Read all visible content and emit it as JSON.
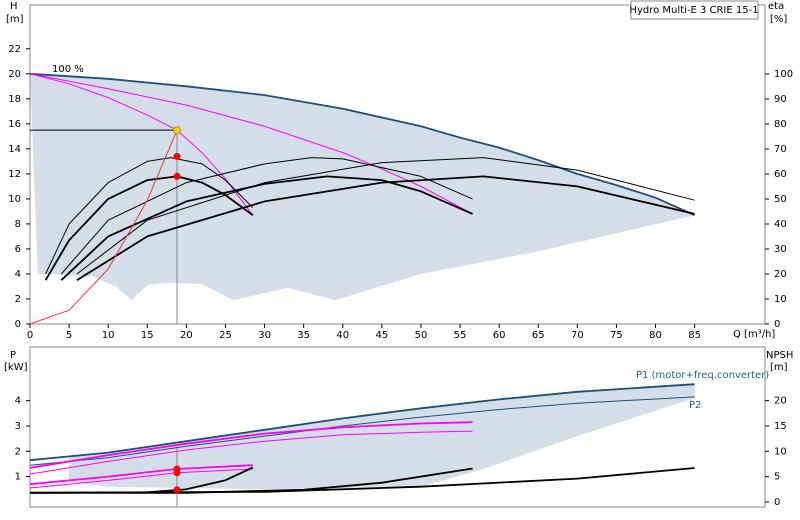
{
  "chart_data": [
    {
      "type": "line",
      "box_title": "Hydro Multi-E 3 CRIE 15-1",
      "y_label": "H",
      "y_unit": "[m]",
      "y2_label": "eta",
      "y2_unit": "[%]",
      "x_label": "Q [m³/h]",
      "annotation": "100 %",
      "xlim": [
        0,
        94
      ],
      "xticks": [
        0,
        5,
        10,
        15,
        20,
        25,
        30,
        35,
        40,
        45,
        50,
        55,
        60,
        65,
        70,
        75,
        80,
        85
      ],
      "ylim": [
        0,
        25.5
      ],
      "yticks": [
        0,
        2,
        4,
        6,
        8,
        10,
        12,
        14,
        16,
        18,
        20,
        22
      ],
      "y2lim": [
        0,
        127.6
      ],
      "y2ticks": [
        0,
        10,
        20,
        30,
        40,
        50,
        60,
        70,
        80,
        90,
        100
      ],
      "areas": [
        {
          "color": "#d3dee8",
          "x": [
            0,
            10,
            20,
            30,
            40,
            50,
            55,
            60,
            65,
            70,
            75,
            80,
            85,
            65,
            50,
            39,
            33,
            26,
            22,
            17,
            15,
            13,
            11,
            8,
            2,
            1,
            0.5
          ],
          "values": [
            20,
            19.6,
            19,
            18.3,
            17.2,
            15.8,
            14.9,
            14.1,
            13.1,
            12.0,
            11.1,
            10.1,
            8.7,
            5.8,
            4.0,
            1.9,
            2.9,
            1.9,
            3.2,
            3.3,
            3.1,
            1.9,
            3.0,
            3.8,
            4.0,
            4.0,
            12
          ]
        }
      ],
      "series": [
        {
          "color": "#1f4e79",
          "style": "thick",
          "x": [
            0,
            10,
            20,
            30,
            40,
            50,
            55,
            60,
            65,
            70,
            75,
            80,
            85
          ],
          "values": [
            20,
            19.6,
            19,
            18.3,
            17.2,
            15.8,
            14.9,
            14.1,
            13.1,
            12.0,
            11.1,
            10.1,
            8.7
          ]
        },
        {
          "color": "#ff00ff",
          "style": "thin",
          "x": [
            0,
            10,
            20,
            30,
            40,
            45,
            50,
            56.6
          ],
          "values": [
            20,
            18.8,
            17.5,
            15.8,
            13.7,
            12.4,
            11.0,
            8.8
          ]
        },
        {
          "color": "#ff00ff",
          "style": "thin",
          "x": [
            0,
            5,
            10,
            15,
            18.8,
            22,
            25,
            28.5
          ],
          "values": [
            20,
            19.2,
            18.1,
            16.7,
            15.5,
            13.7,
            11.6,
            8.7
          ]
        },
        {
          "color": "#000000",
          "style": "thin",
          "x": [
            2,
            5,
            10,
            15,
            18,
            22,
            25,
            28.5
          ],
          "values": [
            4,
            8,
            11.3,
            13.0,
            13.3,
            12.8,
            11.5,
            9.3
          ]
        },
        {
          "color": "#000000",
          "style": "thick",
          "x": [
            2,
            5,
            10,
            15,
            18.8,
            22,
            25,
            28.5
          ],
          "values": [
            3.5,
            6.7,
            10.0,
            11.5,
            11.8,
            11.3,
            10.3,
            8.7
          ]
        },
        {
          "color": "#000000",
          "style": "thin",
          "x": [
            4,
            10,
            20,
            30,
            36,
            40,
            50,
            56.6
          ],
          "values": [
            4,
            8.3,
            11.3,
            12.8,
            13.3,
            13.2,
            11.8,
            10.0
          ]
        },
        {
          "color": "#000000",
          "style": "thick",
          "x": [
            4,
            10,
            20,
            30,
            38,
            45,
            50,
            56.6
          ],
          "values": [
            3.5,
            7.0,
            9.8,
            11.2,
            11.8,
            11.5,
            10.6,
            8.8
          ]
        },
        {
          "color": "#000000",
          "style": "thin",
          "x": [
            6,
            15,
            30,
            45,
            58,
            70,
            85
          ],
          "values": [
            4,
            8.3,
            11.3,
            12.9,
            13.3,
            12.3,
            9.9
          ]
        },
        {
          "color": "#000000",
          "style": "thick",
          "x": [
            6,
            15,
            30,
            45,
            58,
            70,
            85
          ],
          "values": [
            3.5,
            7.0,
            9.8,
            11.3,
            11.8,
            11.0,
            8.8
          ]
        },
        {
          "color": "#ff3333",
          "style": "thin",
          "x": [
            0,
            5,
            10,
            15,
            18.8
          ],
          "values": [
            0,
            1.1,
            4.4,
            9.9,
            15.5
          ]
        }
      ],
      "duty": {
        "x": 18.8,
        "y": 15.5
      },
      "points": [
        {
          "color": "#ffd700",
          "x": 18.8,
          "value": 15.5
        },
        {
          "color": "#ff0000",
          "x": 18.8,
          "value": 13.4
        },
        {
          "color": "#ff0000",
          "x": 18.8,
          "value": 11.8
        }
      ]
    },
    {
      "type": "line",
      "y_label": "P",
      "y_unit": "[kW]",
      "y2_label": "NPSH",
      "y2_unit": "[m]",
      "annotations": [
        "P1 (motor+freq.converter)",
        "P2"
      ],
      "xlim": [
        0,
        94
      ],
      "ylim": [
        -0.2,
        6.12
      ],
      "yticks": [
        1,
        2,
        3,
        4
      ],
      "y2lim": [
        -1,
        30.6
      ],
      "y2ticks": [
        0,
        5,
        10,
        15,
        20
      ],
      "areas": [
        {
          "color": "#d3dee8",
          "x": [
            5,
            10,
            20,
            30,
            40,
            50,
            60,
            70,
            85,
            85,
            70,
            58,
            50,
            30,
            10,
            5
          ],
          "values": [
            1.8,
            1.95,
            2.4,
            2.85,
            3.3,
            3.7,
            4.05,
            4.35,
            4.65,
            4.1,
            2.6,
            1.3,
            0.6,
            0.5,
            0.6,
            0.8
          ]
        }
      ],
      "series": [
        {
          "color": "#1f4e79",
          "style": "thick",
          "x": [
            0,
            10,
            20,
            30,
            40,
            50,
            60,
            70,
            85
          ],
          "values": [
            1.65,
            1.95,
            2.4,
            2.85,
            3.3,
            3.7,
            4.05,
            4.35,
            4.65
          ]
        },
        {
          "color": "#1f4e79",
          "style": "thin",
          "x": [
            0,
            10,
            20,
            30,
            40,
            50,
            60,
            70,
            85
          ],
          "values": [
            1.45,
            1.75,
            2.2,
            2.6,
            3.0,
            3.35,
            3.65,
            3.9,
            4.15
          ]
        },
        {
          "color": "#ff00ff",
          "style": "thick",
          "x": [
            0,
            10,
            20,
            30,
            40,
            50,
            56.6
          ],
          "values": [
            1.35,
            1.85,
            2.3,
            2.7,
            2.95,
            3.1,
            3.15
          ]
        },
        {
          "color": "#ff00ff",
          "style": "thin",
          "x": [
            0,
            10,
            20,
            30,
            40,
            50,
            56.6
          ],
          "values": [
            1.1,
            1.6,
            2.05,
            2.4,
            2.65,
            2.75,
            2.8
          ]
        },
        {
          "color": "#ff00ff",
          "style": "thick",
          "x": [
            0,
            10,
            18.8,
            28.5
          ],
          "values": [
            0.7,
            1.0,
            1.3,
            1.45
          ]
        },
        {
          "color": "#ff00ff",
          "style": "thin",
          "x": [
            0,
            10,
            18.8,
            28.5
          ],
          "values": [
            0.55,
            0.85,
            1.15,
            1.3
          ]
        },
        {
          "color": "#000000",
          "style": "thick",
          "axis": "y2",
          "x": [
            0,
            15,
            20,
            25,
            28.5
          ],
          "values": [
            1.8,
            1.9,
            2.5,
            4.3,
            6.8
          ]
        },
        {
          "color": "#000000",
          "style": "thick",
          "axis": "y2",
          "x": [
            0,
            20,
            35,
            45,
            56.6
          ],
          "values": [
            1.8,
            1.8,
            2.4,
            3.8,
            6.6
          ]
        },
        {
          "color": "#000000",
          "style": "thick",
          "axis": "y2",
          "x": [
            0,
            30,
            50,
            70,
            85
          ],
          "values": [
            1.8,
            2.0,
            3.0,
            4.6,
            6.7
          ]
        }
      ],
      "duty": {
        "x": 18.8
      },
      "points": [
        {
          "color": "#ff0000",
          "x": 18.8,
          "value": 1.3
        },
        {
          "color": "#ff0000",
          "x": 18.8,
          "value": 1.15
        },
        {
          "color": "#ff0000",
          "x": 18.8,
          "value": 2.4,
          "axis": "y2"
        }
      ]
    }
  ]
}
